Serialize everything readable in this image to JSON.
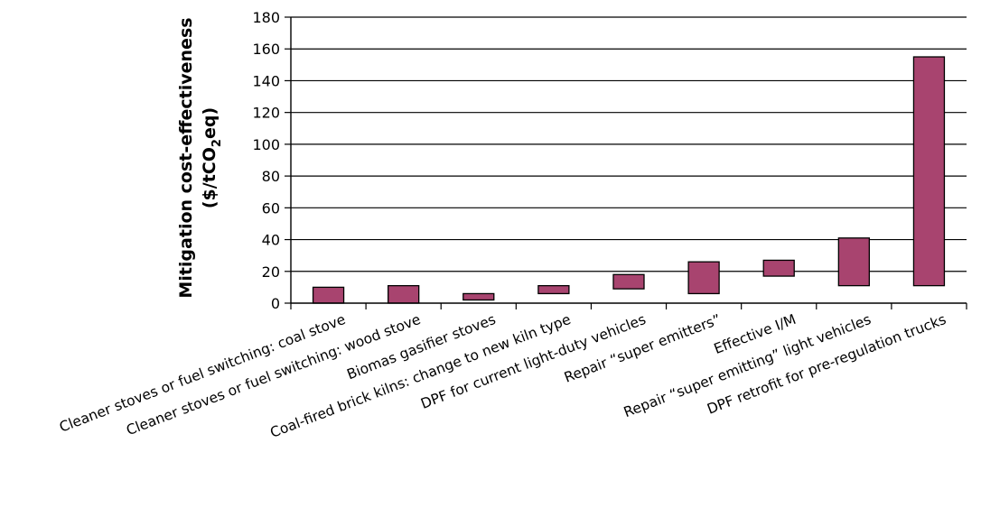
{
  "chart_data": {
    "type": "bar",
    "subtype": "floating-range",
    "title": "",
    "ylabel": {
      "line1": "Mitigation cost-effectiveness",
      "line2_prefix": "($/tCO",
      "line2_sub": "2",
      "line2_suffix": "eq)"
    },
    "xlabel": "",
    "ylim": [
      0,
      180
    ],
    "yticks": [
      0,
      20,
      40,
      60,
      80,
      100,
      120,
      140,
      160,
      180
    ],
    "grid": "horizontal",
    "categories": [
      "Cleaner stoves or fuel switching: coal stove",
      "Cleaner stoves or fuel switching: wood stove",
      "Biomas gasifier stoves",
      "Coal-fired brick kilns: change to new kiln type",
      "DPF for current light-duty vehicles",
      "Repair “super emitters”",
      "Effective I/M",
      "Repair “super emitting” light vehicles",
      "DPF retrofit for pre-regulation trucks"
    ],
    "ranges": [
      [
        0,
        10
      ],
      [
        0,
        11
      ],
      [
        2,
        6
      ],
      [
        6,
        11
      ],
      [
        9,
        18
      ],
      [
        6,
        26
      ],
      [
        17,
        27
      ],
      [
        11,
        41
      ],
      [
        11,
        155
      ]
    ],
    "bar_color": "#a8446f",
    "bar_edge_color": "#000000"
  }
}
